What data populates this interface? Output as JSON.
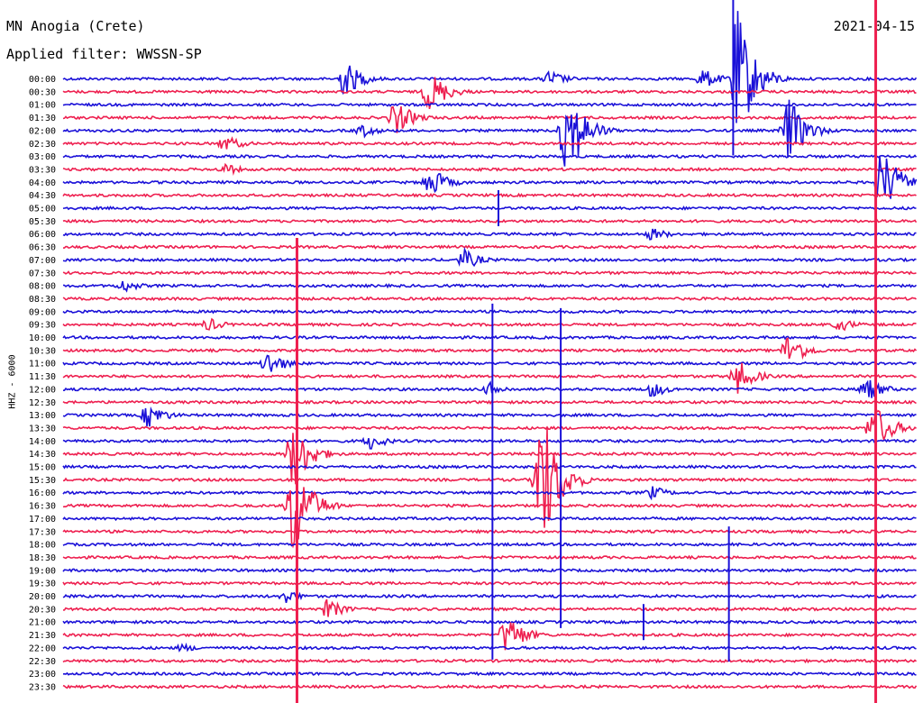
{
  "header": {
    "station": "MN Anogia (Crete)",
    "filter": "Applied filter: WWSSN-SP",
    "date": "2021-04-15"
  },
  "chart_data": {
    "type": "line",
    "title": "MN Anogia (Crete)",
    "subtitle": "Applied filter: WWSSN-SP",
    "ylabel": "HHZ - 6000",
    "date": "2021-04-15",
    "colors": {
      "even_trace": "#1a10d8",
      "odd_trace": "#ee1f4f",
      "background": "#ffffff"
    },
    "row_labels": [
      "00:00",
      "00:30",
      "01:00",
      "01:30",
      "02:00",
      "02:30",
      "03:00",
      "03:30",
      "04:00",
      "04:30",
      "05:00",
      "05:30",
      "06:00",
      "06:30",
      "07:00",
      "07:30",
      "08:00",
      "08:30",
      "09:00",
      "09:30",
      "10:00",
      "10:30",
      "11:00",
      "11:30",
      "12:00",
      "12:30",
      "13:00",
      "13:30",
      "14:00",
      "14:30",
      "15:00",
      "15:30",
      "16:00",
      "16:30",
      "17:00",
      "17:30",
      "18:00",
      "18:30",
      "19:00",
      "19:30",
      "20:00",
      "20:30",
      "21:00",
      "21:30",
      "22:00",
      "22:30",
      "23:00",
      "23:30"
    ],
    "events": [
      {
        "row": 0,
        "x": 0.33,
        "amp": 22
      },
      {
        "row": 0,
        "x": 0.57,
        "amp": 10
      },
      {
        "row": 0,
        "x": 0.75,
        "amp": 12
      },
      {
        "row": 0,
        "x": 0.79,
        "amp": 80
      },
      {
        "row": 1,
        "x": 0.43,
        "amp": 25
      },
      {
        "row": 3,
        "x": 0.39,
        "amp": 20
      },
      {
        "row": 4,
        "x": 0.35,
        "amp": 8
      },
      {
        "row": 4,
        "x": 0.59,
        "amp": 60
      },
      {
        "row": 4,
        "x": 0.85,
        "amp": 40
      },
      {
        "row": 5,
        "x": 0.19,
        "amp": 10
      },
      {
        "row": 7,
        "x": 0.19,
        "amp": 7
      },
      {
        "row": 8,
        "x": 0.43,
        "amp": 18
      },
      {
        "row": 8,
        "x": 0.96,
        "amp": 40
      },
      {
        "row": 12,
        "x": 0.69,
        "amp": 8
      },
      {
        "row": 14,
        "x": 0.47,
        "amp": 12
      },
      {
        "row": 16,
        "x": 0.07,
        "amp": 8
      },
      {
        "row": 19,
        "x": 0.17,
        "amp": 8
      },
      {
        "row": 19,
        "x": 0.91,
        "amp": 8
      },
      {
        "row": 21,
        "x": 0.85,
        "amp": 20
      },
      {
        "row": 22,
        "x": 0.24,
        "amp": 15
      },
      {
        "row": 23,
        "x": 0.79,
        "amp": 20
      },
      {
        "row": 24,
        "x": 0.5,
        "amp": 8
      },
      {
        "row": 24,
        "x": 0.69,
        "amp": 10
      },
      {
        "row": 24,
        "x": 0.94,
        "amp": 15
      },
      {
        "row": 26,
        "x": 0.1,
        "amp": 15
      },
      {
        "row": 27,
        "x": 0.95,
        "amp": 30
      },
      {
        "row": 28,
        "x": 0.36,
        "amp": 10
      },
      {
        "row": 29,
        "x": 0.27,
        "amp": 40
      },
      {
        "row": 31,
        "x": 0.56,
        "amp": 90
      },
      {
        "row": 32,
        "x": 0.69,
        "amp": 8
      },
      {
        "row": 33,
        "x": 0.27,
        "amp": 60
      },
      {
        "row": 40,
        "x": 0.26,
        "amp": 8
      },
      {
        "row": 41,
        "x": 0.31,
        "amp": 12
      },
      {
        "row": 43,
        "x": 0.52,
        "amp": 25
      },
      {
        "row": 44,
        "x": 0.14,
        "amp": 5
      }
    ],
    "spikes": [
      {
        "row": 0,
        "x": 0.785,
        "up": 90,
        "down": 85
      },
      {
        "row": 10,
        "x": 0.51,
        "up": 20,
        "down": 20
      },
      {
        "row": 24,
        "x": 0.503,
        "up": 95,
        "down": 300
      },
      {
        "row": 24,
        "x": 0.583,
        "up": 90,
        "down": 265
      },
      {
        "row": 36,
        "x": 0.78,
        "up": 20,
        "down": 130
      },
      {
        "row": 42,
        "x": 0.68,
        "up": 20,
        "down": 20
      }
    ],
    "vertical_lines": [
      {
        "x": 0.952,
        "color": "odd_trace"
      },
      {
        "x": 0.274,
        "color": "odd_trace",
        "from_row": 13
      }
    ]
  }
}
